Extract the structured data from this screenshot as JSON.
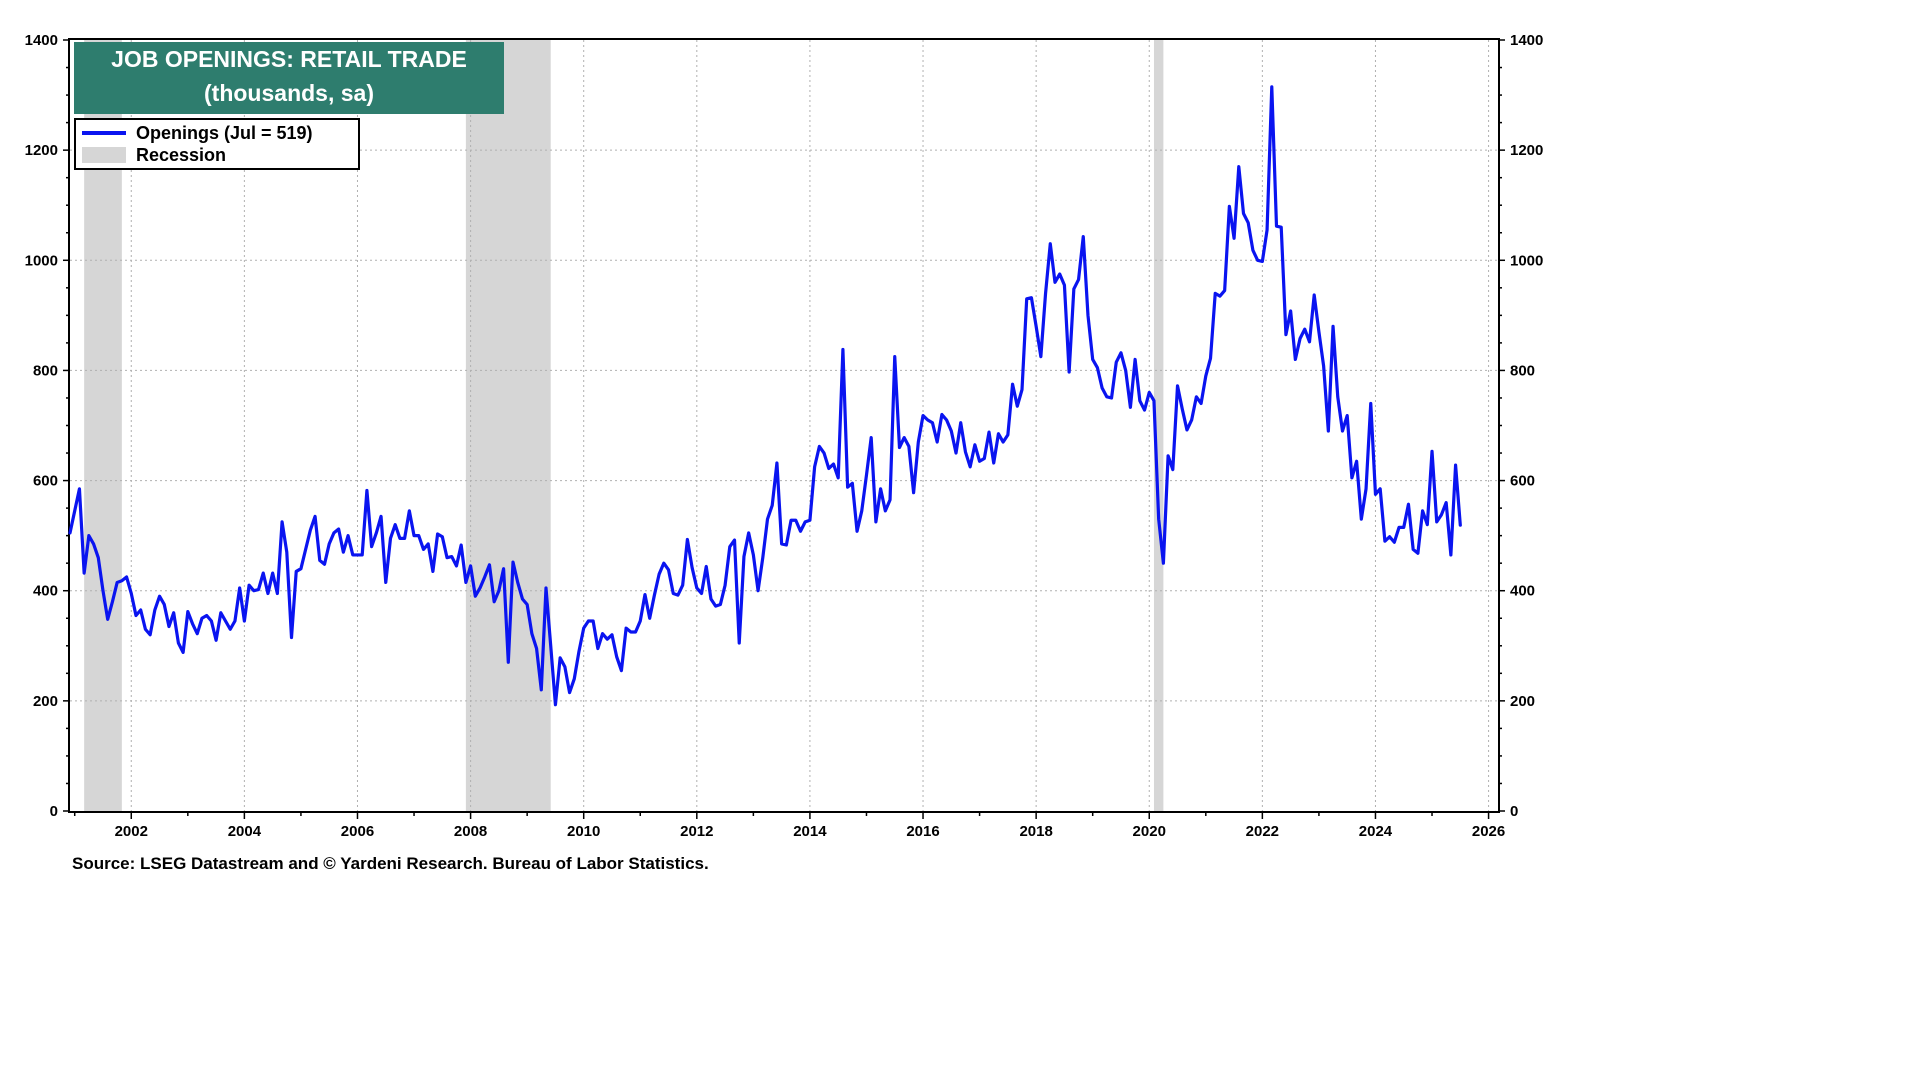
{
  "title": {
    "line1": "JOB OPENINGS: RETAIL TRADE",
    "line2": "(thousands, sa)"
  },
  "legend": {
    "series_label": "Openings (Jul = 519)",
    "recession_label": "Recession"
  },
  "source": "Source: LSEG Datastream and © Yardeni Research. Bureau of Labor Statistics.",
  "colors": {
    "series": "#0a14f0",
    "recession": "#d6d6d6",
    "title_bg": "#2e7d6e"
  },
  "chart_data": {
    "type": "line",
    "title": "JOB OPENINGS: RETAIL TRADE",
    "subtitle": "(thousands, sa)",
    "xlim": [
      "2000-12",
      "2026-03"
    ],
    "ylim": [
      0,
      1400
    ],
    "y_ticks": [
      0,
      200,
      400,
      600,
      800,
      1000,
      1200,
      1400
    ],
    "x_ticks": [
      "2002",
      "2004",
      "2006",
      "2008",
      "2010",
      "2012",
      "2014",
      "2016",
      "2018",
      "2020",
      "2022",
      "2024",
      "2026"
    ],
    "grid": true,
    "legend_position": "top-left",
    "recessions": [
      [
        "2001-03",
        "2001-11"
      ],
      [
        "2007-12",
        "2009-06"
      ],
      [
        "2020-02",
        "2020-04"
      ]
    ],
    "series": [
      {
        "name": "Openings (Jul = 519)",
        "start": "2000-12",
        "values": [
          505,
          545,
          585,
          432,
          500,
          485,
          460,
          400,
          348,
          380,
          415,
          418,
          425,
          395,
          355,
          365,
          330,
          320,
          365,
          390,
          375,
          335,
          360,
          305,
          288,
          362,
          340,
          322,
          350,
          355,
          345,
          310,
          360,
          345,
          330,
          345,
          405,
          345,
          410,
          400,
          402,
          432,
          395,
          432,
          395,
          525,
          470,
          315,
          435,
          440,
          475,
          510,
          535,
          455,
          448,
          485,
          505,
          512,
          470,
          500,
          465,
          465,
          465,
          582,
          480,
          505,
          535,
          415,
          495,
          520,
          495,
          495,
          545,
          500,
          500,
          475,
          485,
          435,
          503,
          498,
          460,
          462,
          445,
          483,
          415,
          445,
          390,
          405,
          425,
          447,
          380,
          400,
          440,
          270,
          452,
          415,
          385,
          375,
          322,
          295,
          220,
          405,
          300,
          193,
          278,
          262,
          215,
          240,
          290,
          332,
          345,
          345,
          295,
          322,
          312,
          320,
          280,
          255,
          332,
          325,
          325,
          345,
          393,
          350,
          392,
          430,
          450,
          438,
          395,
          392,
          410,
          493,
          442,
          405,
          395,
          444,
          385,
          372,
          375,
          410,
          480,
          492,
          305,
          462,
          505,
          465,
          400,
          460,
          530,
          555,
          632,
          485,
          483,
          528,
          528,
          508,
          525,
          528,
          625,
          662,
          650,
          622,
          630,
          605,
          838,
          588,
          595,
          508,
          545,
          610,
          678,
          525,
          585,
          545,
          565,
          825,
          660,
          678,
          662,
          578,
          670,
          718,
          710,
          705,
          670,
          720,
          710,
          690,
          650,
          705,
          652,
          625,
          665,
          635,
          640,
          688,
          632,
          685,
          670,
          683,
          775,
          735,
          765,
          930,
          932,
          880,
          825,
          940,
          1030,
          960,
          975,
          955,
          797,
          948,
          965,
          1043,
          900,
          820,
          805,
          768,
          752,
          750,
          815,
          832,
          800,
          733,
          820,
          745,
          728,
          760,
          745,
          530,
          450,
          645,
          620,
          772,
          730,
          692,
          710,
          752,
          740,
          790,
          822,
          940,
          935,
          945,
          1098,
          1040,
          1170,
          1085,
          1068,
          1018,
          1000,
          998,
          1055,
          1315,
          1062,
          1060,
          865,
          908,
          820,
          858,
          875,
          852,
          937,
          870,
          808,
          690,
          880,
          752,
          690,
          718,
          605,
          635,
          530,
          585,
          740,
          575,
          585,
          490,
          498,
          488,
          515,
          515,
          557,
          475,
          468,
          545,
          520,
          653,
          525,
          538,
          560,
          465,
          628,
          519
        ]
      }
    ]
  }
}
